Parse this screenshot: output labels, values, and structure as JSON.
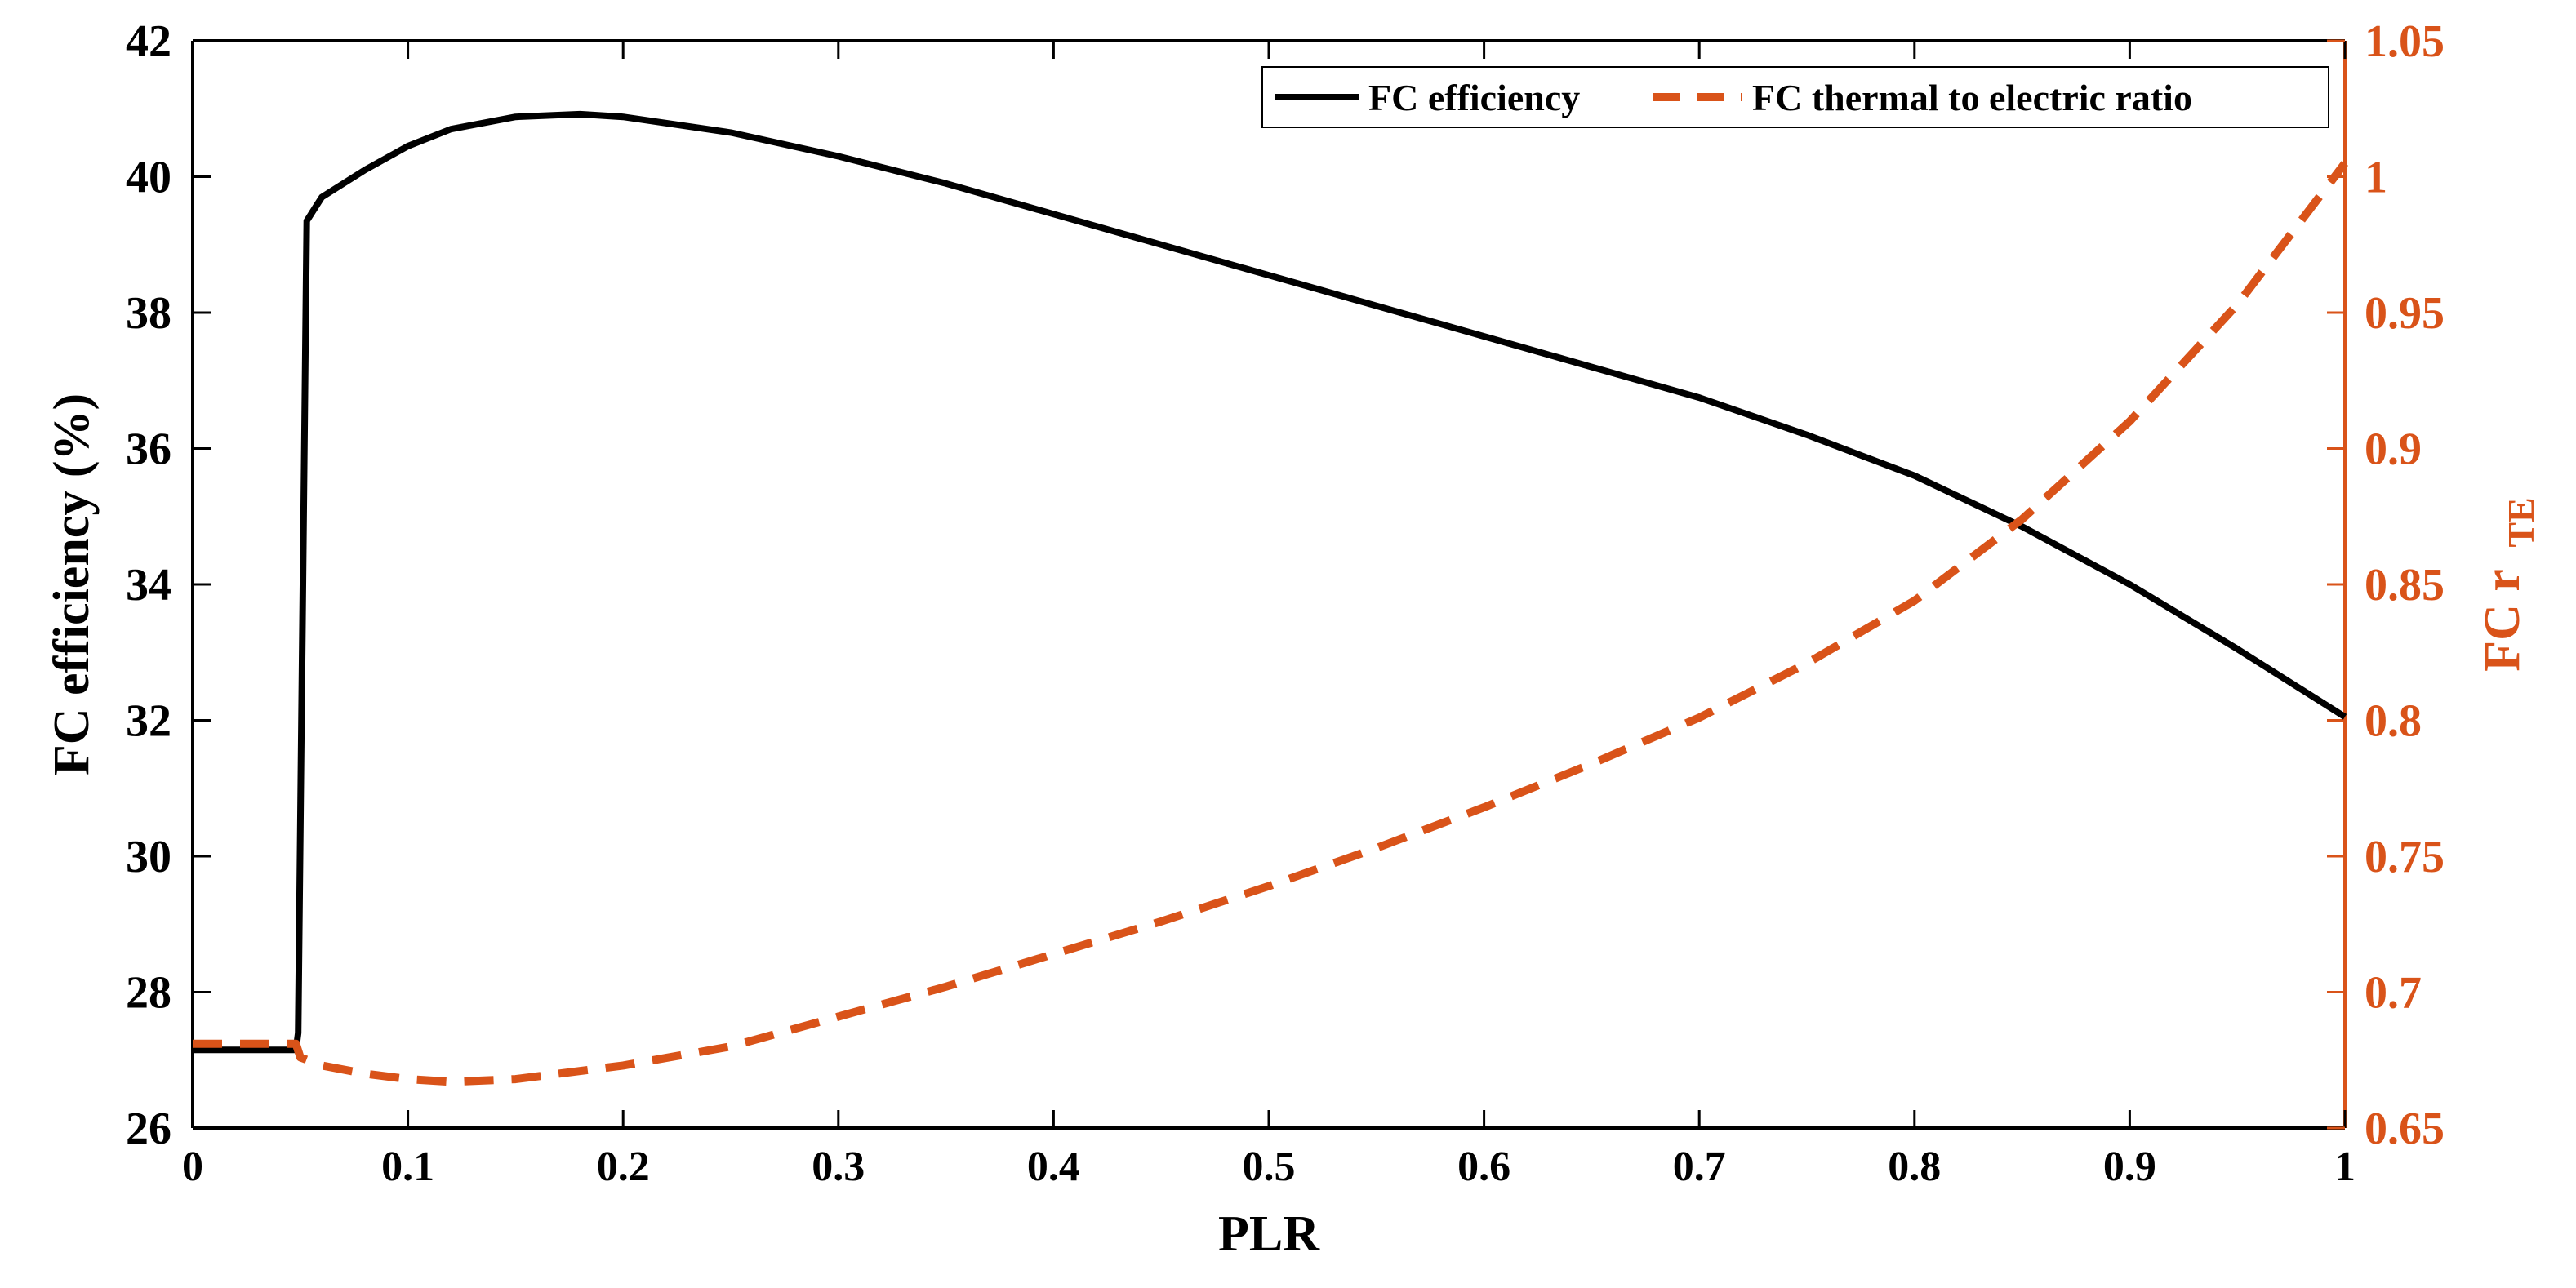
{
  "chart_data": {
    "type": "line",
    "title": "",
    "xlabel": "PLR",
    "ylabel_left": "FC efficiency (%)",
    "ylabel_right_main": "FC r",
    "ylabel_right_sub": "TE",
    "xlim": [
      0,
      1
    ],
    "ylim_left": [
      26,
      42
    ],
    "ylim_right": [
      0.65,
      1.05
    ],
    "x_ticks": [
      "0",
      "0.1",
      "0.2",
      "0.3",
      "0.4",
      "0.5",
      "0.6",
      "0.7",
      "0.8",
      "0.9",
      "1"
    ],
    "y_left_ticks": [
      "26",
      "28",
      "30",
      "32",
      "34",
      "36",
      "38",
      "40",
      "42"
    ],
    "y_right_ticks": [
      "0.65",
      "0.7",
      "0.75",
      "0.8",
      "0.85",
      "0.9",
      "0.95",
      "1",
      "1.05"
    ],
    "grid": false,
    "legend_position": "top-right",
    "colors": {
      "efficiency": "#000000",
      "ratio": "#D95319",
      "right_axis": "#D95319"
    },
    "series": [
      {
        "name": "FC efficiency",
        "axis": "left",
        "style": "solid",
        "points": [
          [
            0,
            27.15
          ],
          [
            0.048,
            27.15
          ],
          [
            0.049,
            27.4
          ],
          [
            0.053,
            39.35
          ],
          [
            0.06,
            39.7
          ],
          [
            0.08,
            40.1
          ],
          [
            0.1,
            40.45
          ],
          [
            0.12,
            40.7
          ],
          [
            0.15,
            40.88
          ],
          [
            0.18,
            40.92
          ],
          [
            0.2,
            40.88
          ],
          [
            0.25,
            40.65
          ],
          [
            0.3,
            40.3
          ],
          [
            0.35,
            39.9
          ],
          [
            0.4,
            39.45
          ],
          [
            0.45,
            39.0
          ],
          [
            0.5,
            38.55
          ],
          [
            0.55,
            38.1
          ],
          [
            0.6,
            37.65
          ],
          [
            0.65,
            37.2
          ],
          [
            0.7,
            36.75
          ],
          [
            0.75,
            36.2
          ],
          [
            0.8,
            35.6
          ],
          [
            0.85,
            34.85
          ],
          [
            0.9,
            34.0
          ],
          [
            0.95,
            33.05
          ],
          [
            1.0,
            32.05
          ]
        ]
      },
      {
        "name": "FC thermal to electric ratio",
        "axis": "right",
        "style": "dashed",
        "points": [
          [
            0,
            0.681
          ],
          [
            0.048,
            0.681
          ],
          [
            0.05,
            0.676
          ],
          [
            0.06,
            0.673
          ],
          [
            0.08,
            0.67
          ],
          [
            0.1,
            0.668
          ],
          [
            0.12,
            0.667
          ],
          [
            0.15,
            0.668
          ],
          [
            0.2,
            0.673
          ],
          [
            0.25,
            0.68
          ],
          [
            0.3,
            0.691
          ],
          [
            0.35,
            0.702
          ],
          [
            0.4,
            0.714
          ],
          [
            0.45,
            0.726
          ],
          [
            0.5,
            0.739
          ],
          [
            0.55,
            0.753
          ],
          [
            0.6,
            0.768
          ],
          [
            0.65,
            0.784
          ],
          [
            0.7,
            0.801
          ],
          [
            0.75,
            0.821
          ],
          [
            0.8,
            0.844
          ],
          [
            0.85,
            0.874
          ],
          [
            0.9,
            0.91
          ],
          [
            0.95,
            0.953
          ],
          [
            1.0,
            1.005
          ]
        ]
      }
    ]
  }
}
